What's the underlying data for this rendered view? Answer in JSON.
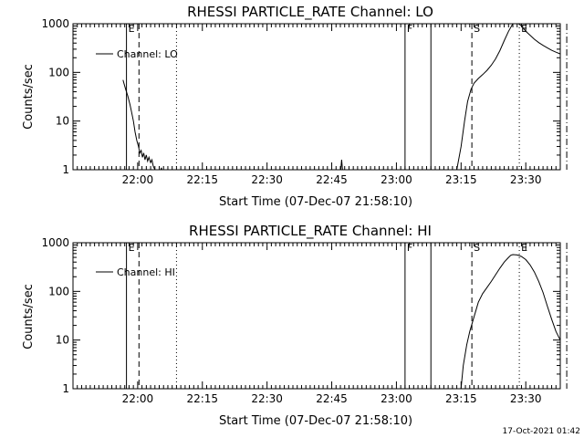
{
  "footer": {
    "timestamp": "17-Oct-2021 01:42"
  },
  "style": {
    "background": "#ffffff",
    "foreground": "#000000"
  },
  "chart_data": [
    {
      "type": "line",
      "title": "RHESSI PARTICLE_RATE Channel: LO",
      "xlabel": "Start Time (07-Dec-07 21:58:10)",
      "ylabel": "Counts/sec",
      "yscale": "log",
      "xlim": [
        -13,
        100
      ],
      "ylim": [
        1,
        1000
      ],
      "xticks": [
        {
          "x": 2,
          "label": "22:00"
        },
        {
          "x": 17,
          "label": "22:15"
        },
        {
          "x": 32,
          "label": "22:30"
        },
        {
          "x": 47,
          "label": "22:45"
        },
        {
          "x": 62,
          "label": "23:00"
        },
        {
          "x": 77,
          "label": "23:15"
        },
        {
          "x": 92,
          "label": "23:30"
        }
      ],
      "yticks": [
        {
          "y": 1,
          "label": "1"
        },
        {
          "y": 10,
          "label": "10"
        },
        {
          "y": 100,
          "label": "100"
        },
        {
          "y": 1000,
          "label": "1000"
        }
      ],
      "legend": {
        "position": "top-left",
        "label": "Channel: LO"
      },
      "events": [
        {
          "x": -0.6,
          "label": "E",
          "style": "solid"
        },
        {
          "x": 2.3,
          "label": "",
          "style": "dashed"
        },
        {
          "x": 11,
          "label": "",
          "style": "dotted"
        },
        {
          "x": 64,
          "label": "F",
          "style": "solid"
        },
        {
          "x": 70,
          "label": "",
          "style": "solid"
        },
        {
          "x": 79.5,
          "label": "S",
          "style": "dashed"
        },
        {
          "x": 90.5,
          "label": "E",
          "style": "dotted"
        },
        {
          "x": 101.5,
          "label": "",
          "style": "dashdot"
        }
      ],
      "series": [
        {
          "segments": [
            [
              [
                -1.4,
                70
              ],
              [
                -1.2,
                60
              ],
              [
                -0.8,
                45
              ],
              [
                -0.3,
                33
              ],
              [
                0.2,
                22
              ],
              [
                0.6,
                15
              ],
              [
                1,
                10
              ],
              [
                1.4,
                6
              ],
              [
                1.8,
                4
              ],
              [
                2.2,
                3
              ],
              [
                2.5,
                2.2
              ],
              [
                2.8,
                2.5
              ],
              [
                3.1,
                1.8
              ],
              [
                3.4,
                2.2
              ],
              [
                3.7,
                1.6
              ],
              [
                4,
                2
              ],
              [
                4.3,
                1.5
              ],
              [
                4.6,
                1.8
              ],
              [
                5,
                1.4
              ],
              [
                5.3,
                1.6
              ],
              [
                5.6,
                1.2
              ],
              [
                6,
                1
              ],
              [
                6.3,
                0.8
              ]
            ],
            [
              [
                7,
                0.8
              ],
              [
                7.5,
                1.1
              ],
              [
                7.8,
                0.8
              ]
            ],
            [
              [
                49,
                0.8
              ],
              [
                49.3,
                1.6
              ],
              [
                49.6,
                0.8
              ]
            ],
            [
              [
                75,
                0.5
              ],
              [
                76,
                1
              ],
              [
                77,
                3
              ],
              [
                77.8,
                10
              ],
              [
                78.5,
                25
              ],
              [
                79.3,
                45
              ],
              [
                80,
                60
              ],
              [
                81,
                75
              ],
              [
                82,
                90
              ],
              [
                83,
                110
              ],
              [
                84,
                140
              ],
              [
                85,
                190
              ],
              [
                86,
                280
              ],
              [
                87,
                450
              ],
              [
                88,
                700
              ],
              [
                89,
                1000
              ],
              [
                90,
                1050
              ],
              [
                91,
                900
              ],
              [
                92,
                700
              ],
              [
                93,
                580
              ],
              [
                94,
                480
              ],
              [
                95,
                410
              ],
              [
                96,
                360
              ],
              [
                97,
                320
              ],
              [
                98,
                285
              ],
              [
                99,
                260
              ],
              [
                100,
                240
              ]
            ]
          ]
        }
      ]
    },
    {
      "type": "line",
      "title": "RHESSI PARTICLE_RATE Channel: HI",
      "xlabel": "Start Time (07-Dec-07 21:58:10)",
      "ylabel": "Counts/sec",
      "yscale": "log",
      "xlim": [
        -13,
        100
      ],
      "ylim": [
        1,
        1000
      ],
      "xticks": [
        {
          "x": 2,
          "label": "22:00"
        },
        {
          "x": 17,
          "label": "22:15"
        },
        {
          "x": 32,
          "label": "22:30"
        },
        {
          "x": 47,
          "label": "22:45"
        },
        {
          "x": 62,
          "label": "23:00"
        },
        {
          "x": 77,
          "label": "23:15"
        },
        {
          "x": 92,
          "label": "23:30"
        }
      ],
      "yticks": [
        {
          "y": 1,
          "label": "1"
        },
        {
          "y": 10,
          "label": "10"
        },
        {
          "y": 100,
          "label": "100"
        },
        {
          "y": 1000,
          "label": "1000"
        }
      ],
      "legend": {
        "position": "top-left",
        "label": "Channel: HI"
      },
      "events": [
        {
          "x": -0.6,
          "label": "E",
          "style": "solid"
        },
        {
          "x": 2.3,
          "label": "",
          "style": "dashed"
        },
        {
          "x": 11,
          "label": "",
          "style": "dotted"
        },
        {
          "x": 64,
          "label": "F",
          "style": "solid"
        },
        {
          "x": 70,
          "label": "",
          "style": "solid"
        },
        {
          "x": 79.5,
          "label": "S",
          "style": "dashed"
        },
        {
          "x": 90.5,
          "label": "E",
          "style": "dotted"
        },
        {
          "x": 101.5,
          "label": "",
          "style": "dashdot"
        }
      ],
      "series": [
        {
          "segments": [
            [
              [
                76.8,
                0.7
              ],
              [
                77.5,
                3
              ],
              [
                78.3,
                8
              ],
              [
                79,
                15
              ],
              [
                80,
                30
              ],
              [
                81,
                60
              ],
              [
                82,
                90
              ],
              [
                83,
                120
              ],
              [
                84,
                160
              ],
              [
                85,
                220
              ],
              [
                86,
                300
              ],
              [
                87,
                400
              ],
              [
                88,
                500
              ],
              [
                88.5,
                550
              ],
              [
                89,
                570
              ],
              [
                90,
                560
              ],
              [
                91,
                520
              ],
              [
                92,
                450
              ],
              [
                93,
                350
              ],
              [
                94,
                250
              ],
              [
                95,
                160
              ],
              [
                96,
                95
              ],
              [
                97,
                50
              ],
              [
                98,
                27
              ],
              [
                99,
                15
              ],
              [
                100,
                10
              ],
              [
                101,
                8
              ]
            ]
          ]
        }
      ]
    }
  ]
}
